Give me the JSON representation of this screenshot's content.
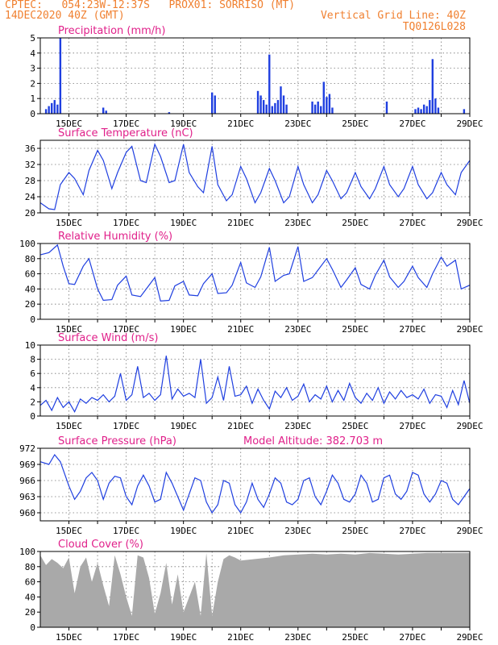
{
  "header": {
    "line1": "CPTEC:   054:23W-12:37S   PROX01: SORRISO (MT)",
    "line2": "14DEC2020 40Z (GMT)",
    "grid_line": "Vertical Grid Line: 40Z",
    "code": "TQ0126L028"
  },
  "colors": {
    "header": "#f08030",
    "title": "#e0208a",
    "series": "#1f3fe0",
    "cloud": "#a9a9a9"
  },
  "chart_data": [
    {
      "type": "bar",
      "title": "Precipitation (mm/h)",
      "ylim": [
        0,
        5
      ],
      "yticks": [
        "0",
        "1",
        "2",
        "3",
        "4",
        "5"
      ],
      "xticks": [
        "15DEC",
        "17DEC",
        "19DEC",
        "21DEC",
        "23DEC",
        "25DEC",
        "27DEC",
        "29DEC"
      ],
      "xrange_days": [
        14.0,
        29.0
      ],
      "x": [
        14.2,
        14.3,
        14.4,
        14.5,
        14.6,
        14.7,
        16.2,
        16.3,
        18.5,
        20.0,
        20.1,
        21.6,
        21.7,
        21.8,
        21.9,
        22.0,
        22.1,
        22.2,
        22.3,
        22.4,
        22.5,
        22.6,
        23.5,
        23.6,
        23.7,
        23.8,
        23.9,
        24.0,
        24.1,
        24.2,
        26.1,
        27.1,
        27.2,
        27.3,
        27.4,
        27.5,
        27.6,
        27.7,
        27.8,
        27.9,
        28.8
      ],
      "values": [
        0.3,
        0.5,
        0.7,
        0.9,
        0.6,
        5.0,
        0.4,
        0.2,
        0.1,
        1.4,
        1.2,
        1.5,
        1.2,
        0.9,
        0.6,
        3.9,
        0.5,
        0.7,
        0.9,
        1.8,
        1.2,
        0.6,
        0.8,
        0.6,
        0.8,
        0.5,
        2.1,
        1.1,
        1.3,
        0.4,
        0.8,
        0.3,
        0.4,
        0.3,
        0.6,
        0.5,
        0.9,
        3.6,
        1.0,
        0.4,
        0.3
      ]
    },
    {
      "type": "line",
      "title": "Surface Temperature (nC)",
      "ylim": [
        20,
        38
      ],
      "yticks": [
        "20",
        "24",
        "28",
        "32",
        "36"
      ],
      "xticks": [
        "15DEC",
        "17DEC",
        "19DEC",
        "21DEC",
        "23DEC",
        "25DEC",
        "27DEC",
        "29DEC"
      ],
      "xrange_days": [
        14.0,
        29.0
      ],
      "x": [
        14.0,
        14.3,
        14.5,
        14.7,
        15.0,
        15.2,
        15.5,
        15.7,
        16.0,
        16.2,
        16.5,
        16.7,
        17.0,
        17.2,
        17.5,
        17.7,
        18.0,
        18.2,
        18.5,
        18.7,
        19.0,
        19.2,
        19.5,
        19.7,
        20.0,
        20.2,
        20.5,
        20.7,
        21.0,
        21.2,
        21.5,
        21.7,
        22.0,
        22.2,
        22.5,
        22.7,
        23.0,
        23.2,
        23.5,
        23.7,
        24.0,
        24.2,
        24.5,
        24.7,
        25.0,
        25.2,
        25.5,
        25.7,
        26.0,
        26.2,
        26.5,
        26.7,
        27.0,
        27.2,
        27.5,
        27.7,
        28.0,
        28.2,
        28.5,
        28.7,
        29.0
      ],
      "y": [
        22.5,
        21.0,
        20.8,
        27.0,
        30.0,
        28.5,
        24.5,
        30.5,
        35.5,
        33.0,
        26.0,
        30.0,
        35.0,
        36.5,
        28.0,
        27.5,
        37.0,
        34.0,
        27.5,
        28.0,
        37.0,
        30.0,
        26.5,
        25.0,
        36.5,
        27.0,
        23.0,
        24.5,
        31.5,
        28.5,
        22.5,
        25.0,
        31.0,
        28.0,
        22.5,
        24.0,
        31.5,
        27.0,
        22.5,
        24.5,
        30.5,
        28.0,
        23.5,
        25.0,
        30.0,
        26.5,
        23.5,
        26.0,
        31.5,
        27.0,
        24.0,
        26.0,
        31.5,
        27.0,
        23.5,
        25.0,
        30.0,
        27.0,
        24.5,
        30.0,
        33.0
      ]
    },
    {
      "type": "line",
      "title": "Relative Humidity (%)",
      "ylim": [
        0,
        100
      ],
      "yticks": [
        "0",
        "20",
        "40",
        "60",
        "80",
        "100"
      ],
      "xticks": [
        "15DEC",
        "17DEC",
        "19DEC",
        "21DEC",
        "23DEC",
        "25DEC",
        "27DEC",
        "29DEC"
      ],
      "xrange_days": [
        14.0,
        29.0
      ],
      "x": [
        14.0,
        14.3,
        14.6,
        14.8,
        15.0,
        15.2,
        15.5,
        15.7,
        16.0,
        16.2,
        16.5,
        16.7,
        17.0,
        17.2,
        17.5,
        17.7,
        18.0,
        18.2,
        18.5,
        18.7,
        19.0,
        19.2,
        19.5,
        19.7,
        20.0,
        20.2,
        20.5,
        20.7,
        21.0,
        21.2,
        21.5,
        21.7,
        22.0,
        22.2,
        22.5,
        22.7,
        23.0,
        23.2,
        23.5,
        23.7,
        24.0,
        24.2,
        24.5,
        24.7,
        25.0,
        25.2,
        25.5,
        25.7,
        26.0,
        26.2,
        26.5,
        26.7,
        27.0,
        27.2,
        27.5,
        27.7,
        28.0,
        28.2,
        28.5,
        28.7,
        29.0
      ],
      "y": [
        85,
        88,
        98,
        70,
        47,
        46,
        70,
        80,
        40,
        25,
        26,
        45,
        57,
        32,
        30,
        40,
        55,
        24,
        25,
        44,
        50,
        32,
        31,
        47,
        60,
        34,
        35,
        45,
        75,
        48,
        42,
        56,
        95,
        50,
        58,
        60,
        96,
        50,
        55,
        65,
        80,
        66,
        42,
        52,
        68,
        46,
        40,
        58,
        78,
        56,
        42,
        50,
        70,
        55,
        42,
        60,
        82,
        70,
        78,
        40,
        45
      ]
    },
    {
      "type": "line",
      "title": "Surface Wind (m/s)",
      "ylim": [
        0,
        10
      ],
      "yticks": [
        "0",
        "2",
        "4",
        "6",
        "8",
        "10"
      ],
      "xticks": [
        "15DEC",
        "17DEC",
        "19DEC",
        "21DEC",
        "23DEC",
        "25DEC",
        "27DEC",
        "29DEC"
      ],
      "xrange_days": [
        14.0,
        29.0
      ],
      "x": [
        14.0,
        14.2,
        14.4,
        14.6,
        14.8,
        15.0,
        15.2,
        15.4,
        15.6,
        15.8,
        16.0,
        16.2,
        16.4,
        16.6,
        16.8,
        17.0,
        17.2,
        17.4,
        17.6,
        17.8,
        18.0,
        18.2,
        18.4,
        18.6,
        18.8,
        19.0,
        19.2,
        19.4,
        19.6,
        19.8,
        20.0,
        20.2,
        20.4,
        20.6,
        20.8,
        21.0,
        21.2,
        21.4,
        21.6,
        21.8,
        22.0,
        22.2,
        22.4,
        22.6,
        22.8,
        23.0,
        23.2,
        23.4,
        23.6,
        23.8,
        24.0,
        24.2,
        24.4,
        24.6,
        24.8,
        25.0,
        25.2,
        25.4,
        25.6,
        25.8,
        26.0,
        26.2,
        26.4,
        26.6,
        26.8,
        27.0,
        27.2,
        27.4,
        27.6,
        27.8,
        28.0,
        28.2,
        28.4,
        28.6,
        28.8,
        29.0
      ],
      "y": [
        1.5,
        2.2,
        0.8,
        2.6,
        1.2,
        2.0,
        0.6,
        2.4,
        1.8,
        2.6,
        2.2,
        3.0,
        2.0,
        2.8,
        6.0,
        2.2,
        3.0,
        7.0,
        2.6,
        3.2,
        2.2,
        3.0,
        8.5,
        2.4,
        3.8,
        2.8,
        3.2,
        2.6,
        8.0,
        1.8,
        2.6,
        5.5,
        2.2,
        7.0,
        2.8,
        3.0,
        4.2,
        1.8,
        3.8,
        2.2,
        1.0,
        3.5,
        2.6,
        4.0,
        2.2,
        2.8,
        4.5,
        2.0,
        3.0,
        2.4,
        4.2,
        2.0,
        3.6,
        2.2,
        4.6,
        2.6,
        1.8,
        3.2,
        2.2,
        4.0,
        1.8,
        3.4,
        2.4,
        3.6,
        2.6,
        3.0,
        2.4,
        3.8,
        1.8,
        3.0,
        2.8,
        1.2,
        3.6,
        1.6,
        5.0,
        1.8
      ]
    },
    {
      "type": "line",
      "title": "Surface Pressure (hPa)",
      "annotation": "Model Altitude: 382.703 m",
      "ylim": [
        958.5,
        972
      ],
      "yticks": [
        "960",
        "963",
        "966",
        "969",
        "972"
      ],
      "xticks": [
        "15DEC",
        "17DEC",
        "19DEC",
        "21DEC",
        "23DEC",
        "25DEC",
        "27DEC",
        "29DEC"
      ],
      "xrange_days": [
        14.0,
        29.0
      ],
      "x": [
        14.0,
        14.3,
        14.5,
        14.7,
        15.0,
        15.2,
        15.4,
        15.6,
        15.8,
        16.0,
        16.2,
        16.4,
        16.6,
        16.8,
        17.0,
        17.2,
        17.4,
        17.6,
        17.8,
        18.0,
        18.2,
        18.4,
        18.6,
        18.8,
        19.0,
        19.2,
        19.4,
        19.6,
        19.8,
        20.0,
        20.2,
        20.4,
        20.6,
        20.8,
        21.0,
        21.2,
        21.4,
        21.6,
        21.8,
        22.0,
        22.2,
        22.4,
        22.6,
        22.8,
        23.0,
        23.2,
        23.4,
        23.6,
        23.8,
        24.0,
        24.2,
        24.4,
        24.6,
        24.8,
        25.0,
        25.2,
        25.4,
        25.6,
        25.8,
        26.0,
        26.2,
        26.4,
        26.6,
        26.8,
        27.0,
        27.2,
        27.4,
        27.6,
        27.8,
        28.0,
        28.2,
        28.4,
        28.6,
        28.8,
        29.0
      ],
      "y": [
        969.5,
        969.0,
        970.8,
        969.5,
        965.0,
        962.5,
        964.0,
        966.5,
        967.5,
        966.0,
        962.5,
        965.5,
        966.8,
        966.5,
        963.0,
        961.5,
        965.0,
        967.0,
        965.0,
        962.0,
        962.5,
        967.5,
        965.5,
        963.0,
        960.5,
        963.5,
        966.5,
        966.0,
        962.0,
        960.0,
        961.5,
        966.0,
        965.5,
        961.5,
        960.0,
        962.0,
        965.5,
        962.5,
        961.0,
        963.5,
        966.5,
        965.5,
        962.0,
        961.5,
        962.5,
        966.0,
        966.5,
        963.0,
        961.5,
        964.0,
        967.0,
        965.5,
        962.5,
        962.0,
        963.5,
        967.0,
        965.5,
        962.0,
        962.5,
        966.5,
        967.0,
        963.5,
        962.5,
        964.0,
        967.5,
        967.0,
        963.5,
        962.0,
        963.5,
        966.0,
        965.5,
        962.5,
        961.5,
        963.0,
        964.5
      ]
    },
    {
      "type": "area",
      "title": "Cloud Cover (%)",
      "ylim": [
        0,
        100
      ],
      "yticks": [
        "0",
        "20",
        "40",
        "60",
        "80",
        "100"
      ],
      "xticks": [
        "15DEC",
        "17DEC",
        "19DEC",
        "21DEC",
        "23DEC",
        "25DEC",
        "27DEC",
        "29DEC"
      ],
      "xrange_days": [
        14.0,
        29.0
      ],
      "x": [
        14.0,
        14.2,
        14.4,
        14.6,
        14.8,
        15.0,
        15.2,
        15.4,
        15.6,
        15.8,
        16.0,
        16.2,
        16.4,
        16.6,
        16.8,
        17.0,
        17.2,
        17.4,
        17.6,
        17.8,
        18.0,
        18.2,
        18.4,
        18.6,
        18.8,
        19.0,
        19.2,
        19.4,
        19.6,
        19.8,
        20.0,
        20.2,
        20.4,
        20.6,
        20.8,
        21.0,
        21.5,
        22.0,
        22.5,
        23.0,
        23.5,
        24.0,
        24.5,
        25.0,
        25.5,
        26.0,
        26.5,
        27.0,
        27.5,
        28.0,
        28.5,
        29.0
      ],
      "y": [
        95,
        82,
        90,
        85,
        78,
        92,
        45,
        80,
        92,
        60,
        85,
        55,
        28,
        95,
        70,
        40,
        15,
        95,
        92,
        65,
        18,
        45,
        85,
        30,
        70,
        20,
        40,
        60,
        15,
        98,
        15,
        60,
        90,
        95,
        92,
        88,
        90,
        92,
        95,
        96,
        97,
        96,
        97,
        96,
        98,
        97,
        96,
        97,
        98,
        98,
        98,
        98
      ]
    }
  ]
}
